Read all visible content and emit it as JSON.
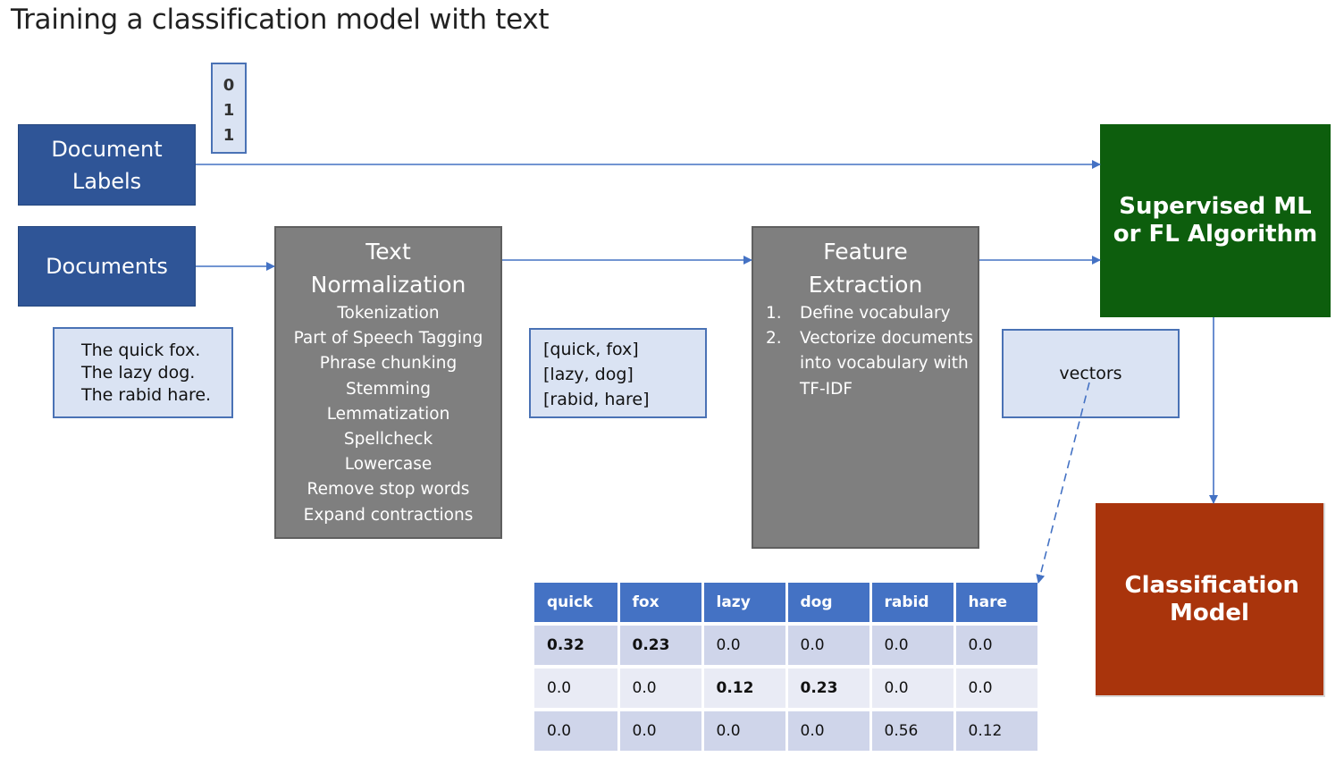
{
  "title": "Training a classification model with text",
  "document_labels": {
    "label": "Document Labels",
    "values": [
      "0",
      "1",
      "1"
    ]
  },
  "documents": {
    "label": "Documents",
    "samples": [
      "The quick fox.",
      "The lazy dog.",
      "The rabid hare."
    ]
  },
  "text_normalization": {
    "heading": "Text Normalization",
    "steps": [
      "Tokenization",
      "Part of Speech Tagging",
      "Phrase chunking",
      "Stemming",
      "Lemmatization",
      "Spellcheck",
      "Lowercase",
      "Remove stop words",
      "Expand contractions"
    ]
  },
  "tokens": [
    "[quick, fox]",
    "[lazy, dog]",
    "[rabid, hare]"
  ],
  "feature_extraction": {
    "heading": "Feature Extraction",
    "steps": [
      {
        "num": "1.",
        "text": "Define vocabulary"
      },
      {
        "num": "2.",
        "text": "Vectorize documents into vocabulary with TF-IDF"
      }
    ]
  },
  "vectors_label": "vectors",
  "algorithm_label": "Supervised ML or FL Algorithm",
  "model_label": "Classification Model",
  "vector_table": {
    "columns": [
      "quick",
      "fox",
      "lazy",
      "dog",
      "rabid",
      "hare"
    ],
    "rows": [
      [
        "0.32",
        "0.23",
        "0.0",
        "0.0",
        "0.0",
        "0.0"
      ],
      [
        "0.0",
        "0.0",
        "0.12",
        "0.23",
        "0.0",
        "0.0"
      ],
      [
        "0.0",
        "0.0",
        "0.0",
        "0.0",
        "0.56",
        "0.12"
      ]
    ],
    "bold_cells": [
      [
        0,
        0
      ],
      [
        0,
        1
      ],
      [
        1,
        2
      ],
      [
        1,
        3
      ]
    ]
  },
  "colors": {
    "input_blue": "#2f5597",
    "process_gray": "#7f7f7f",
    "data_light_blue": "#dae3f3",
    "algorithm_green": "#0d5e0d",
    "model_red": "#a9340c",
    "table_header": "#4472c4",
    "arrow": "#4472c4"
  }
}
